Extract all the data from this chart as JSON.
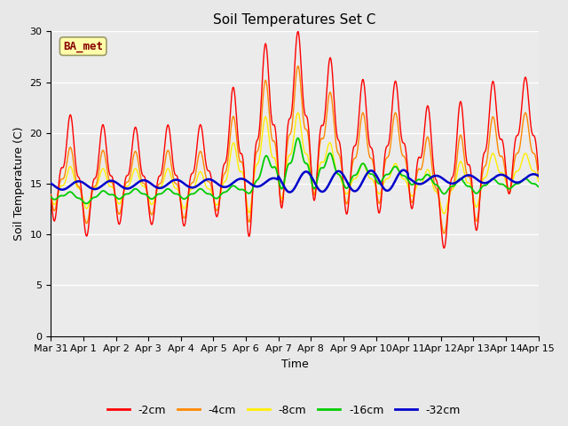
{
  "title": "Soil Temperatures Set C",
  "xlabel": "Time",
  "ylabel": "Soil Temperature (C)",
  "ylim": [
    0,
    30
  ],
  "xlim": [
    0,
    15
  ],
  "fig_bg": "#e8e8e8",
  "plot_bg": "#ebebeb",
  "annotation_text": "BA_met",
  "annotation_bg": "#ffffaa",
  "annotation_border": "#999966",
  "annotation_text_color": "#880000",
  "series_colors": {
    "-2cm": "#ff0000",
    "-4cm": "#ff8800",
    "-8cm": "#ffee00",
    "-16cm": "#00cc00",
    "-32cm": "#0000cc"
  },
  "legend_labels": [
    "-2cm",
    "-4cm",
    "-8cm",
    "-16cm",
    "-32cm"
  ],
  "xtick_labels": [
    "Mar 31",
    "Apr 1",
    "Apr 2",
    "Apr 3",
    "Apr 4",
    "Apr 5",
    "Apr 6",
    "Apr 7",
    "Apr 8",
    "Apr 9",
    "Apr 10",
    "Apr 11",
    "Apr 12",
    "Apr 13",
    "Apr 14",
    "Apr 15"
  ],
  "ytick_values": [
    0,
    5,
    10,
    15,
    20,
    25,
    30
  ]
}
